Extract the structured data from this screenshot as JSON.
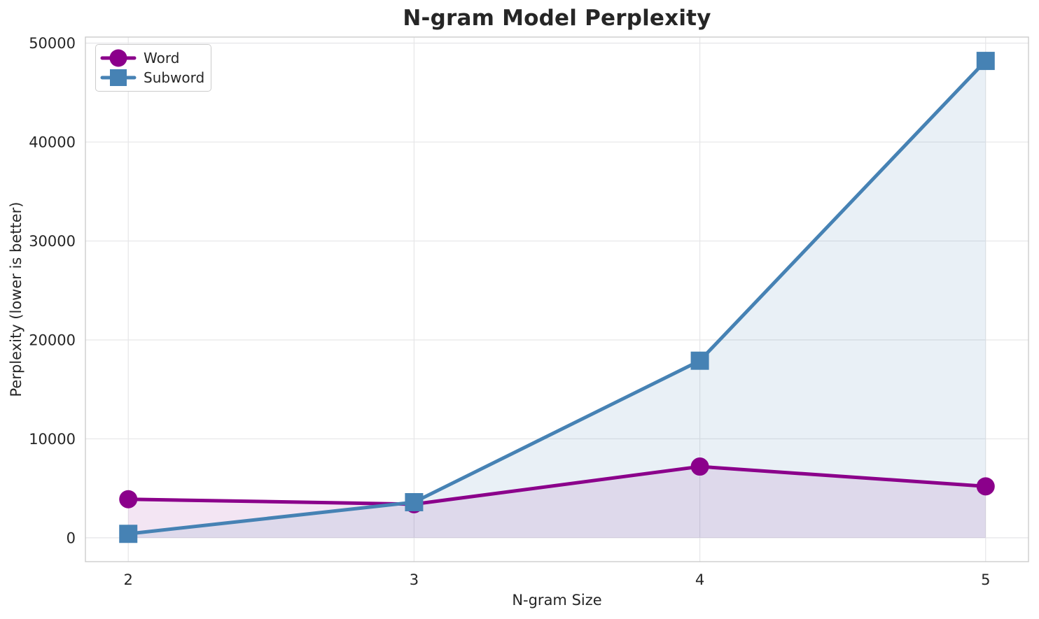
{
  "chart_data": {
    "type": "line",
    "title": "N-gram Model Perplexity",
    "xlabel": "N-gram Size",
    "ylabel": "Perplexity (lower is better)",
    "x": [
      2,
      3,
      4,
      5
    ],
    "series": [
      {
        "name": "Word",
        "values": [
          3900,
          3400,
          7200,
          5200
        ],
        "color": "#8B008B",
        "marker": "circle",
        "fill_to_zero": true,
        "fill_opacity": 0.1
      },
      {
        "name": "Subword",
        "values": [
          400,
          3600,
          17900,
          48200
        ],
        "color": "#4682B4",
        "marker": "square",
        "fill_to_zero": true,
        "fill_opacity": 0.12
      }
    ],
    "x_tick_labels": [
      "2",
      "3",
      "4",
      "5"
    ],
    "y_tick_values": [
      0,
      10000,
      20000,
      30000,
      40000,
      50000
    ],
    "y_tick_labels": [
      "0",
      "10000",
      "20000",
      "30000",
      "40000",
      "50000"
    ],
    "xlim": [
      1.85,
      5.15
    ],
    "ylim": [
      -2410,
      50610
    ],
    "grid": true,
    "legend_position": "upper-left"
  },
  "style": {
    "background": "#ffffff",
    "grid_color": "#e6e6e8",
    "spine_color": "#cccccc",
    "text_color": "#262626"
  }
}
